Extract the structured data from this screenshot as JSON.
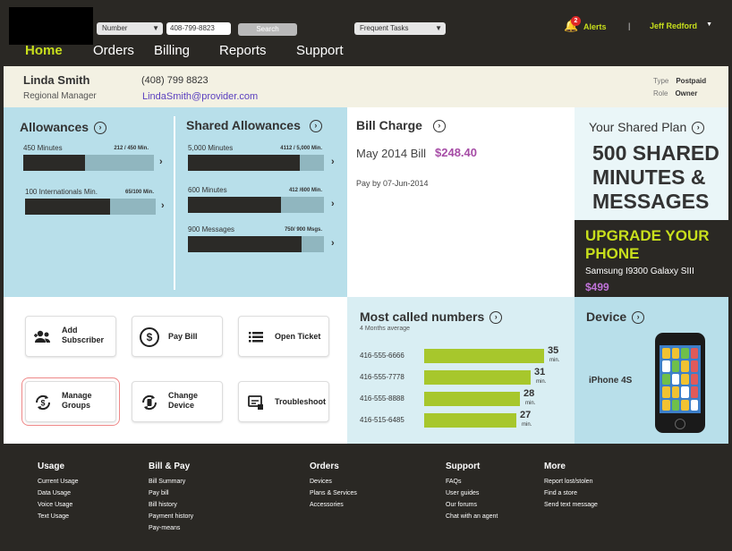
{
  "header": {
    "search_type": "Number",
    "search_value": "408-799-8823",
    "search_button": "Search",
    "tasks_select": "Frequent Tasks",
    "alert_count": "2",
    "alerts_label": "Alerts",
    "separator": "|",
    "user_name": "Jeff Redford"
  },
  "nav": [
    "Home",
    "Orders",
    "Billing",
    "Reports",
    "Support"
  ],
  "customer": {
    "name": "Linda Smith",
    "role": "Regional Manager",
    "phone": "(408) 799 8823",
    "email": "LindaSmith@provider.com",
    "type_label": "Type",
    "type_value": "Postpaid",
    "role_label": "Role",
    "role_value": "Owner"
  },
  "allowances": {
    "title": "Allowances",
    "items": [
      {
        "label": "450 Minutes",
        "count": "212 / 450 Min.",
        "used": 212,
        "total": 450
      },
      {
        "label": "100 Internationals Min.",
        "count": "65/100 Min.",
        "used": 65,
        "total": 100
      }
    ]
  },
  "shared_allowances": {
    "title": "Shared Allowances",
    "items": [
      {
        "label": "5,000 Minutes",
        "count": "4112 / 5,000 Min.",
        "used": 4112,
        "total": 5000
      },
      {
        "label": "600 Minutes",
        "count": "412 /600 Min.",
        "used": 412,
        "total": 600
      },
      {
        "label": "900 Messages",
        "count": "750/ 900 Msgs.",
        "used": 750,
        "total": 900
      }
    ]
  },
  "bill": {
    "title": "Bill Charge",
    "month": "May 2014 Bill",
    "amount": "$248.40",
    "due": "Pay by 07-Jun-2014"
  },
  "plan": {
    "title": "Your Shared Plan",
    "headline": "500 SHARED MINUTES & MESSAGES"
  },
  "upgrade": {
    "title": "UPGRADE YOUR PHONE",
    "phone": "Samsung I9300  Galaxy SIII",
    "price": "$499"
  },
  "actions": [
    {
      "label": "Add Subscriber",
      "icon": "users-icon"
    },
    {
      "label": "Pay Bill",
      "icon": "dollar-icon"
    },
    {
      "label": "Open Ticket",
      "icon": "list-icon"
    },
    {
      "label": "Manage Groups",
      "icon": "manage-groups-icon"
    },
    {
      "label": "Change Device",
      "icon": "change-device-icon"
    },
    {
      "label": "Troubleshoot",
      "icon": "troubleshoot-icon"
    }
  ],
  "most_called": {
    "title": "Most called numbers",
    "subtitle": "4 Months average",
    "unit": "min.",
    "rows": [
      {
        "number": "416-555-6666",
        "minutes": 35
      },
      {
        "number": "416-555-7778",
        "minutes": 31
      },
      {
        "number": "416-555-8888",
        "minutes": 28
      },
      {
        "number": "416-515-6485",
        "minutes": 27
      }
    ]
  },
  "device": {
    "title": "Device",
    "name": "iPhone 4S"
  },
  "footer": [
    {
      "head": "Usage",
      "links": [
        "Current Usage",
        "Data Usage",
        "Voice Usage",
        "Text Usage"
      ]
    },
    {
      "head": "Bill & Pay",
      "links": [
        "Bill Summary",
        "Pay bill",
        "Bill history",
        "Payment history",
        "Pay-means"
      ]
    },
    {
      "head": "Orders",
      "links": [
        "Devices",
        "Plans & Services",
        "Accessories"
      ]
    },
    {
      "head": "Support",
      "links": [
        "FAQs",
        "User guides",
        "Our forums",
        "Chat with an agent"
      ]
    },
    {
      "head": "More",
      "links": [
        "Report lost/stolen",
        "Find a store",
        "Send text message"
      ]
    }
  ],
  "colors": {
    "accent": "#c8df1c",
    "panel_blue": "#b8dfea",
    "bar_green": "#a7c72c",
    "price_purple": "#a64ca6"
  }
}
